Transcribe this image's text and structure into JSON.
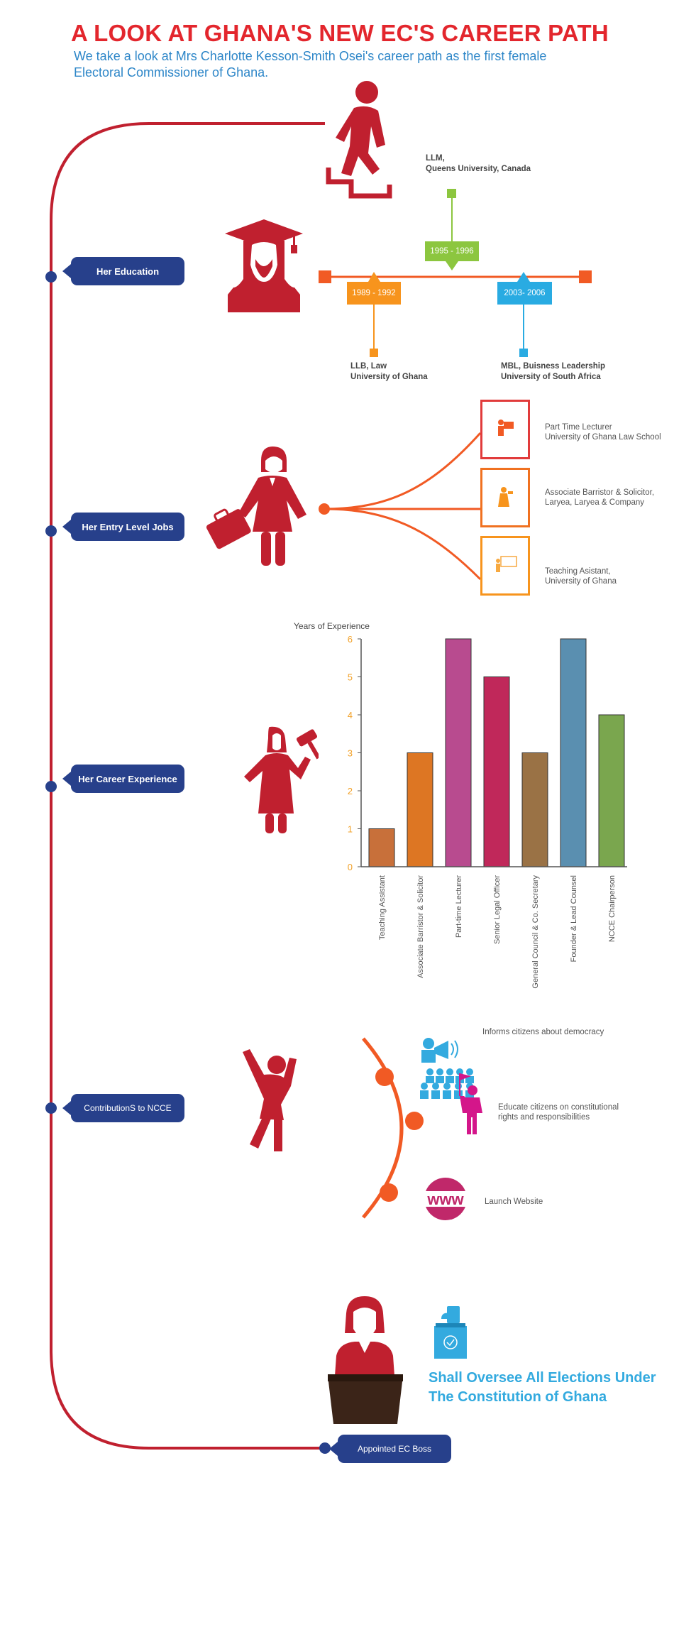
{
  "header": {
    "title": "A LOOK AT GHANA'S NEW EC'S CAREER PATH",
    "subtitle": "We take a look at Mrs Charlotte Kesson-Smith Osei's career path as the first female Electoral Commissioner of Ghana."
  },
  "sections": {
    "education": "Her Education",
    "entry_jobs": "Her Entry Level Jobs",
    "career": "Her Career Experience",
    "contributions": "ContributionS to NCCE",
    "appointed": "Appointed EC Boss"
  },
  "education": {
    "top_degree": [
      "LLM,",
      "Queens University, Canada"
    ],
    "top_years": "1995 - 1996",
    "left_years": "1989 - 1992",
    "left_degree": [
      "LLB, Law",
      "University of Ghana"
    ],
    "right_years": "2003- 2006",
    "right_degree": [
      "MBL, Buisness Leadership",
      "University of South Africa"
    ]
  },
  "entry_jobs": [
    {
      "line1": "Part Time Lecturer",
      "line2": "University of Ghana Law School"
    },
    {
      "line1": "Associate Barristor & Solicitor,",
      "line2": "Laryea, Laryea & Company"
    },
    {
      "line1": "Teaching Asistant,",
      "line2": "University of Ghana"
    }
  ],
  "chart_data": {
    "type": "bar",
    "title": "",
    "ylabel": "Years of Experience",
    "xlabel": "",
    "ylim": [
      0,
      6
    ],
    "yticks": [
      "0",
      "1",
      "2",
      "3",
      "4",
      "5",
      "6"
    ],
    "categories": [
      "Teaching Assistant",
      "Associate Barristor & Solicitor",
      "Part-time Lecturer",
      "Senior Legal Officer",
      "General Council & Co. Secretary",
      "Founder & Lead Counsel",
      "NCCE Chairperson"
    ],
    "values": [
      1,
      3,
      6,
      5,
      3,
      6,
      4
    ],
    "colors": [
      "#c8703a",
      "#dd7623",
      "#b84b8f",
      "#c0285a",
      "#9a7245",
      "#5a8fb0",
      "#7aa64e"
    ]
  },
  "contributions": [
    {
      "line1": "Informs citizens about democracy",
      "line2": ""
    },
    {
      "line1": "Educate citizens on constitutional",
      "line2": "rights and responsibilities"
    },
    {
      "line1": "Launch Website",
      "line2": ""
    }
  ],
  "www_label": "www",
  "ec": {
    "heading_line1": "Shall Oversee All Elections Under",
    "heading_line2": "The Constitution of Ghana"
  },
  "colors": {
    "title_red": "#e3262d",
    "pill_blue": "#27408b",
    "timeline_red": "#c0202f",
    "orange": "#f15a24",
    "accent_cyan": "#33aadf"
  }
}
